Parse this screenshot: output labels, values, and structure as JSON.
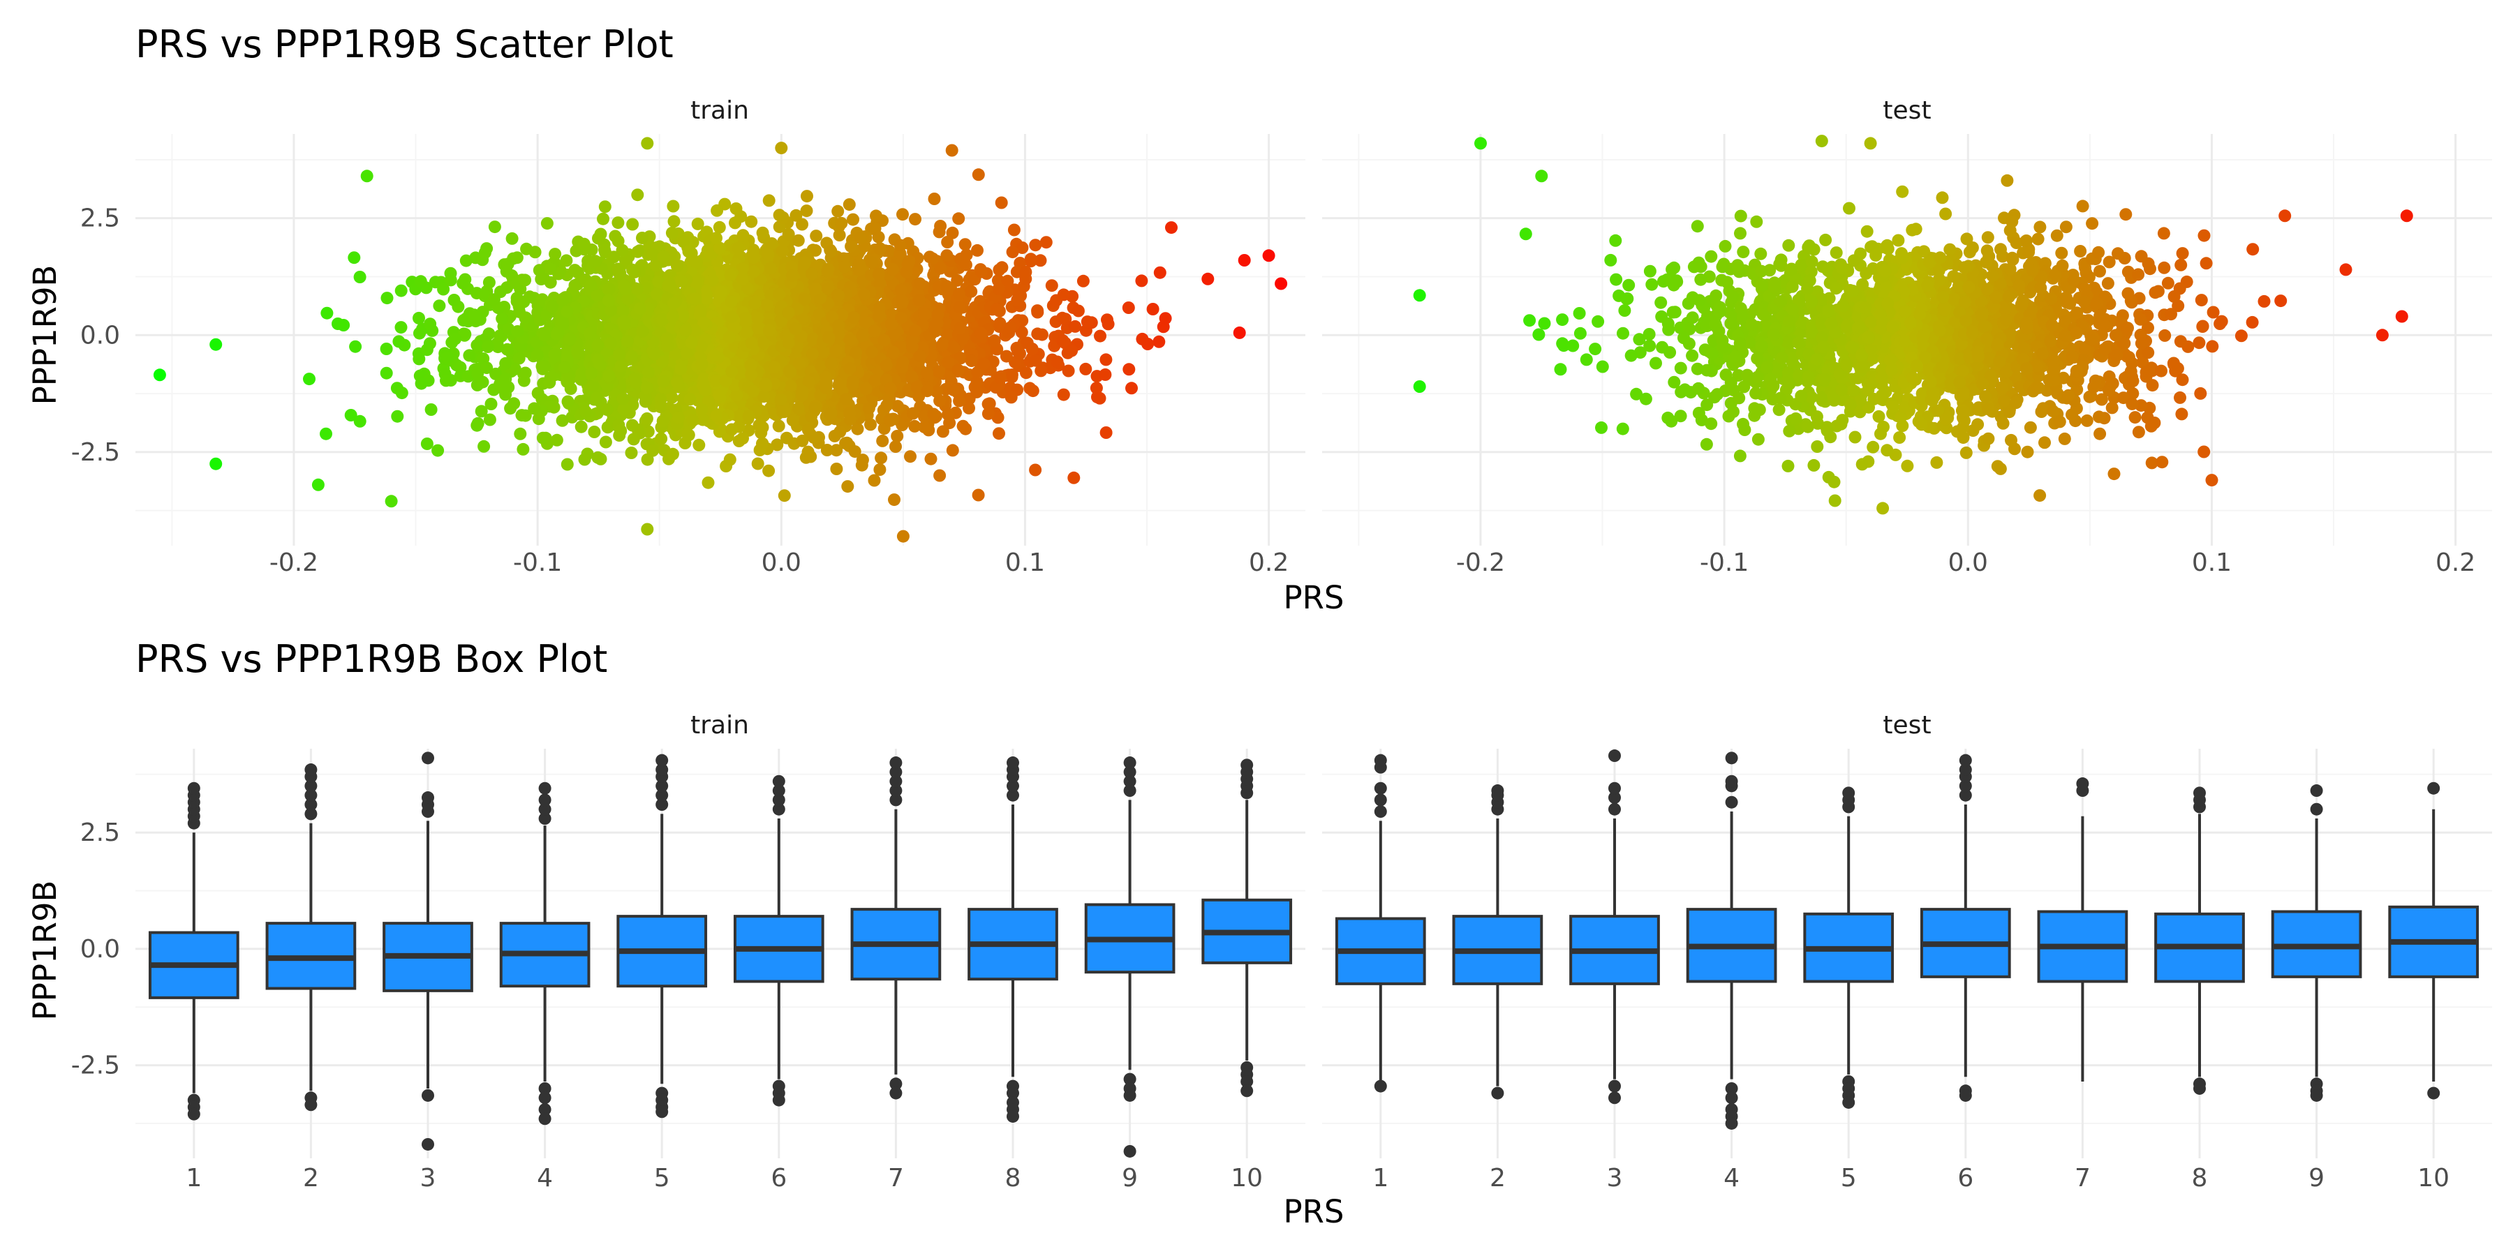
{
  "colors": {
    "grid_major": "#ebebeb",
    "grid_minor": "#f5f5f5",
    "gradient_low": "#00ff00",
    "gradient_mid": "#b8b800",
    "gradient_high": "#ff0000",
    "box_fill": "#1e90ff",
    "box_line": "#333333"
  },
  "chart_data": [
    {
      "type": "scatter",
      "title": "PRS vs PPP1R9B Scatter Plot",
      "xlabel": "PRS",
      "ylabel": "PPP1R9B",
      "xlim": [
        -0.265,
        0.215
      ],
      "ylim": [
        -4.5,
        4.3
      ],
      "x_ticks": [
        -0.2,
        -0.1,
        0.0,
        0.1,
        0.2
      ],
      "x_tick_labels": [
        "-0.2",
        "-0.1",
        "0.0",
        "0.1",
        "0.2"
      ],
      "y_ticks": [
        -2.5,
        0.0,
        2.5
      ],
      "y_tick_labels": [
        "-2.5",
        "0.0",
        "2.5"
      ],
      "color_encoding": "PRS (green to red gradient)",
      "grid": true,
      "legend": "none",
      "facets": [
        {
          "label": "train",
          "approx_distribution": {
            "x_mean": -0.01,
            "x_sd": 0.055,
            "y_mean": 0.0,
            "y_sd": 1.0
          },
          "points": [
            [
              -0.255,
              -0.85
            ],
            [
              -0.232,
              -0.2
            ],
            [
              -0.232,
              -2.75
            ],
            [
              -0.19,
              -3.2
            ],
            [
              -0.17,
              3.4
            ],
            [
              -0.16,
              -3.55
            ],
            [
              -0.055,
              4.1
            ],
            [
              -0.055,
              -4.15
            ],
            [
              0.0,
              4.0
            ],
            [
              0.05,
              -4.3
            ],
            [
              0.07,
              3.95
            ],
            [
              0.12,
              -3.05
            ],
            [
              0.16,
              2.3
            ],
            [
              0.175,
              1.2
            ],
            [
              0.188,
              0.05
            ],
            [
              0.19,
              1.6
            ],
            [
              0.2,
              1.7
            ],
            [
              0.205,
              1.1
            ]
          ],
          "n_background": 4000
        },
        {
          "label": "test",
          "approx_distribution": {
            "x_mean": -0.02,
            "x_sd": 0.05,
            "y_mean": 0.0,
            "y_sd": 1.0
          },
          "points": [
            [
              -0.225,
              -1.1
            ],
            [
              -0.225,
              0.85
            ],
            [
              -0.2,
              4.1
            ],
            [
              -0.175,
              3.4
            ],
            [
              -0.06,
              4.15
            ],
            [
              -0.04,
              4.1
            ],
            [
              -0.035,
              -3.7
            ],
            [
              0.1,
              -3.1
            ],
            [
              0.13,
              2.55
            ],
            [
              0.155,
              1.4
            ],
            [
              0.17,
              0.0
            ],
            [
              0.178,
              0.4
            ],
            [
              0.18,
              2.55
            ]
          ],
          "n_background": 2000
        }
      ]
    },
    {
      "type": "box",
      "title": "PRS vs PPP1R9B Box Plot",
      "xlabel": "PRS",
      "ylabel": "PPP1R9B",
      "ylim": [
        -4.5,
        4.3
      ],
      "categories": [
        "1",
        "2",
        "3",
        "4",
        "5",
        "6",
        "7",
        "8",
        "9",
        "10"
      ],
      "y_ticks": [
        -2.5,
        0.0,
        2.5
      ],
      "y_tick_labels": [
        "-2.5",
        "0.0",
        "2.5"
      ],
      "grid": true,
      "legend": "none",
      "facets": [
        {
          "label": "train",
          "boxes": [
            {
              "q1": -1.05,
              "median": -0.35,
              "q3": 0.35,
              "whisker_low": -3.1,
              "whisker_high": 2.5,
              "outliers": [
                2.7,
                2.85,
                3.0,
                3.15,
                3.3,
                3.45,
                -3.25,
                -3.4,
                -3.55
              ]
            },
            {
              "q1": -0.85,
              "median": -0.2,
              "q3": 0.55,
              "whisker_low": -3.05,
              "whisker_high": 2.7,
              "outliers": [
                2.9,
                3.1,
                3.3,
                3.5,
                3.7,
                3.85,
                -3.2,
                -3.35
              ]
            },
            {
              "q1": -0.9,
              "median": -0.15,
              "q3": 0.55,
              "whisker_low": -3.0,
              "whisker_high": 2.75,
              "outliers": [
                2.95,
                3.1,
                3.25,
                4.1,
                -3.15,
                -4.2
              ]
            },
            {
              "q1": -0.8,
              "median": -0.1,
              "q3": 0.55,
              "whisker_low": -2.85,
              "whisker_high": 2.65,
              "outliers": [
                2.8,
                3.0,
                3.2,
                3.45,
                -3.0,
                -3.2,
                -3.45,
                -3.65
              ]
            },
            {
              "q1": -0.8,
              "median": -0.05,
              "q3": 0.7,
              "whisker_low": -2.9,
              "whisker_high": 2.9,
              "outliers": [
                3.1,
                3.3,
                3.5,
                3.7,
                3.85,
                4.05,
                -3.1,
                -3.25,
                -3.4,
                -3.5
              ]
            },
            {
              "q1": -0.7,
              "median": 0.0,
              "q3": 0.7,
              "whisker_low": -2.8,
              "whisker_high": 2.8,
              "outliers": [
                3.0,
                3.2,
                3.4,
                3.6,
                -2.95,
                -3.1,
                -3.25
              ]
            },
            {
              "q1": -0.65,
              "median": 0.1,
              "q3": 0.85,
              "whisker_low": -2.7,
              "whisker_high": 3.0,
              "outliers": [
                3.2,
                3.4,
                3.6,
                3.8,
                4.0,
                -2.9,
                -3.1
              ]
            },
            {
              "q1": -0.65,
              "median": 0.1,
              "q3": 0.85,
              "whisker_low": -2.75,
              "whisker_high": 3.1,
              "outliers": [
                3.3,
                3.5,
                3.7,
                3.85,
                4.0,
                -2.95,
                -3.1,
                -3.3,
                -3.45,
                -3.6
              ]
            },
            {
              "q1": -0.5,
              "median": 0.2,
              "q3": 0.95,
              "whisker_low": -2.6,
              "whisker_high": 3.2,
              "outliers": [
                3.4,
                3.6,
                3.8,
                4.0,
                -2.8,
                -3.0,
                -3.15,
                -4.35
              ]
            },
            {
              "q1": -0.3,
              "median": 0.35,
              "q3": 1.05,
              "whisker_low": -2.4,
              "whisker_high": 3.2,
              "outliers": [
                3.35,
                3.5,
                3.65,
                3.8,
                3.95,
                -2.55,
                -2.7,
                -2.85,
                -3.05
              ]
            }
          ]
        },
        {
          "label": "test",
          "boxes": [
            {
              "q1": -0.75,
              "median": -0.05,
              "q3": 0.65,
              "whisker_low": -2.85,
              "whisker_high": 2.75,
              "outliers": [
                2.95,
                3.2,
                3.45,
                3.9,
                4.05,
                -2.95
              ]
            },
            {
              "q1": -0.75,
              "median": -0.05,
              "q3": 0.7,
              "whisker_low": -2.95,
              "whisker_high": 2.8,
              "outliers": [
                3.0,
                3.15,
                3.3,
                3.4,
                -3.1
              ]
            },
            {
              "q1": -0.75,
              "median": -0.05,
              "q3": 0.7,
              "whisker_low": -2.8,
              "whisker_high": 2.8,
              "outliers": [
                3.0,
                3.25,
                3.45,
                4.15,
                -2.95,
                -3.2
              ]
            },
            {
              "q1": -0.7,
              "median": 0.05,
              "q3": 0.85,
              "whisker_low": -2.8,
              "whisker_high": 2.95,
              "outliers": [
                3.15,
                3.5,
                3.6,
                4.1,
                -3.0,
                -3.2,
                -3.45,
                -3.6,
                -3.75
              ]
            },
            {
              "q1": -0.7,
              "median": 0.0,
              "q3": 0.75,
              "whisker_low": -2.7,
              "whisker_high": 2.85,
              "outliers": [
                3.05,
                3.2,
                3.35,
                -2.85,
                -3.0,
                -3.15,
                -3.3
              ]
            },
            {
              "q1": -0.6,
              "median": 0.1,
              "q3": 0.85,
              "whisker_low": -2.75,
              "whisker_high": 3.1,
              "outliers": [
                3.3,
                3.5,
                3.7,
                3.85,
                4.05,
                -3.05,
                -3.15
              ]
            },
            {
              "q1": -0.7,
              "median": 0.05,
              "q3": 0.8,
              "whisker_low": -2.85,
              "whisker_high": 2.85,
              "outliers": [
                3.4,
                3.55
              ]
            },
            {
              "q1": -0.7,
              "median": 0.05,
              "q3": 0.75,
              "whisker_low": -2.75,
              "whisker_high": 2.9,
              "outliers": [
                3.05,
                3.2,
                3.35,
                -2.9,
                -3.0
              ]
            },
            {
              "q1": -0.6,
              "median": 0.05,
              "q3": 0.8,
              "whisker_low": -2.75,
              "whisker_high": 2.8,
              "outliers": [
                3.0,
                3.4,
                -2.9,
                -3.05,
                -3.15
              ]
            },
            {
              "q1": -0.6,
              "median": 0.15,
              "q3": 0.9,
              "whisker_low": -2.85,
              "whisker_high": 3.0,
              "outliers": [
                3.45,
                -3.1
              ]
            }
          ]
        }
      ]
    }
  ]
}
